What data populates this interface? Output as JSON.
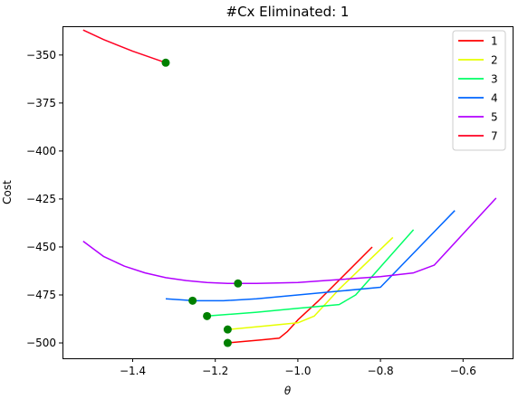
{
  "chart_data": {
    "type": "line",
    "title": "#Cx Eliminated: 1",
    "xlabel": "θ",
    "ylabel": "Cost",
    "xlim": [
      -1.57,
      -0.48
    ],
    "ylim": [
      -508,
      -335
    ],
    "xticks": [
      -1.4,
      -1.2,
      -1.0,
      -0.8,
      -0.6
    ],
    "xtick_labels": [
      "−1.4",
      "−1.2",
      "−1.0",
      "−0.8",
      "−0.6"
    ],
    "yticks": [
      -350,
      -375,
      -400,
      -425,
      -450,
      -475,
      -500
    ],
    "ytick_labels": [
      "−350",
      "−375",
      "−400",
      "−425",
      "−450",
      "−475",
      "−500"
    ],
    "grid": false,
    "legend_position": "top-right",
    "series": [
      {
        "name": "1",
        "color": "#ff0000",
        "points": [
          [
            -1.17,
            -500
          ],
          [
            -1.09,
            -498.5
          ],
          [
            -1.045,
            -497.5
          ],
          [
            -1.025,
            -494
          ],
          [
            -1.0,
            -488
          ],
          [
            -0.95,
            -478
          ],
          [
            -0.82,
            -450
          ]
        ],
        "marker": [
          -1.17,
          -500
        ]
      },
      {
        "name": "2",
        "color": "#e6ff00",
        "points": [
          [
            -1.17,
            -493
          ],
          [
            -1.07,
            -491
          ],
          [
            -1.0,
            -489.5
          ],
          [
            -0.96,
            -486
          ],
          [
            -0.9,
            -472
          ],
          [
            -0.77,
            -445
          ]
        ],
        "marker": [
          -1.17,
          -493
        ]
      },
      {
        "name": "3",
        "color": "#00ff66",
        "points": [
          [
            -1.22,
            -486
          ],
          [
            -1.1,
            -484
          ],
          [
            -1.0,
            -482
          ],
          [
            -0.9,
            -480
          ],
          [
            -0.86,
            -475
          ],
          [
            -0.72,
            -441
          ]
        ],
        "marker": [
          -1.22,
          -486
        ]
      },
      {
        "name": "4",
        "color": "#0066ff",
        "points": [
          [
            -1.32,
            -477
          ],
          [
            -1.25,
            -478
          ],
          [
            -1.18,
            -478
          ],
          [
            -1.1,
            -477
          ],
          [
            -1.0,
            -475
          ],
          [
            -0.9,
            -473
          ],
          [
            -0.8,
            -471
          ],
          [
            -0.62,
            -431
          ]
        ],
        "marker": [
          -1.255,
          -478
        ]
      },
      {
        "name": "5",
        "color": "#b200ff",
        "points": [
          [
            -1.52,
            -447
          ],
          [
            -1.47,
            -455
          ],
          [
            -1.42,
            -460
          ],
          [
            -1.37,
            -463.5
          ],
          [
            -1.32,
            -466
          ],
          [
            -1.27,
            -467.5
          ],
          [
            -1.22,
            -468.5
          ],
          [
            -1.17,
            -469
          ],
          [
            -1.1,
            -469
          ],
          [
            -1.0,
            -468.5
          ],
          [
            -0.9,
            -467
          ],
          [
            -0.8,
            -465.5
          ],
          [
            -0.72,
            -463.5
          ],
          [
            -0.67,
            -459.5
          ],
          [
            -0.52,
            -424.5
          ]
        ],
        "marker": [
          -1.145,
          -469
        ]
      },
      {
        "name": "7",
        "color": "#ff0022",
        "points": [
          [
            -1.52,
            -337
          ],
          [
            -1.47,
            -342
          ],
          [
            -1.4,
            -348
          ],
          [
            -1.32,
            -354
          ]
        ],
        "marker": [
          -1.32,
          -354
        ]
      }
    ],
    "marker_color": "#008000"
  }
}
